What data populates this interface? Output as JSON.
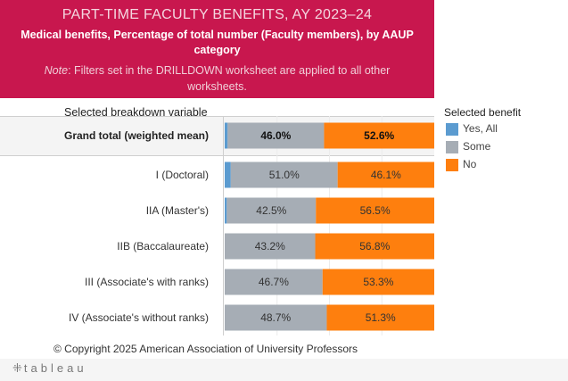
{
  "header": {
    "title": "PART-TIME FACULTY BENEFITS, AY 2023–24",
    "subtitle": "Medical benefits, Percentage of total number (Faculty members), by AAUP category",
    "note_label": "Note",
    "note_text": ": Filters set in the DRILLDOWN worksheet are applied to all other worksheets."
  },
  "breakdown_label": "Selected breakdown variable",
  "legend": {
    "title": "Selected benefit",
    "items": [
      {
        "label": "Yes, All",
        "color": "#5b9bd0"
      },
      {
        "label": "Some",
        "color": "#a6adb5"
      },
      {
        "label": "No",
        "color": "#fe7f0e"
      }
    ]
  },
  "chart_data": {
    "type": "bar",
    "orientation": "horizontal",
    "stacked": true,
    "normalized": true,
    "title": "PART-TIME FACULTY BENEFITS, AY 2023–24",
    "xlabel": "",
    "ylabel": "Selected breakdown variable",
    "xlim": [
      0,
      100
    ],
    "categories": [
      "Grand total (weighted mean)",
      "I (Doctoral)",
      "IIA (Master's)",
      "IIB (Baccalaureate)",
      "III (Associate's with ranks)",
      "IV (Associate's without ranks)"
    ],
    "series": [
      {
        "name": "Yes, All",
        "color": "#5b9bd0",
        "values": [
          1.4,
          2.9,
          1.0,
          0.0,
          0.0,
          0.0
        ],
        "labels": [
          "",
          "",
          "",
          "",
          "",
          ""
        ]
      },
      {
        "name": "Some",
        "color": "#a6adb5",
        "values": [
          46.0,
          51.0,
          42.5,
          43.2,
          46.7,
          48.7
        ],
        "labels": [
          "46.0%",
          "51.0%",
          "42.5%",
          "43.2%",
          "46.7%",
          "48.7%"
        ]
      },
      {
        "name": "No",
        "color": "#fe7f0e",
        "values": [
          52.6,
          46.1,
          56.5,
          56.8,
          53.3,
          51.3
        ],
        "labels": [
          "52.6%",
          "46.1%",
          "56.5%",
          "56.8%",
          "53.3%",
          "51.3%"
        ]
      }
    ],
    "grid": false,
    "legend_position": "right"
  },
  "copyright": "© Copyright 2025 American Association of University Professors",
  "footer": {
    "logo_text": "tableau",
    "logo_icon": "tableau-plus-icon"
  }
}
